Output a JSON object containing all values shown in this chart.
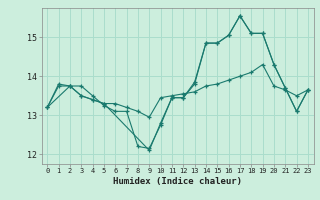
{
  "title": "",
  "xlabel": "Humidex (Indice chaleur)",
  "bg_color": "#cceedd",
  "grid_color": "#aaddcc",
  "line_color": "#1a7a6e",
  "xlim": [
    -0.5,
    23.5
  ],
  "ylim": [
    11.75,
    15.75
  ],
  "xticks": [
    0,
    1,
    2,
    3,
    4,
    5,
    6,
    7,
    8,
    9,
    10,
    11,
    12,
    13,
    14,
    15,
    16,
    17,
    18,
    19,
    20,
    21,
    22,
    23
  ],
  "yticks": [
    12,
    13,
    14,
    15
  ],
  "line1_x": [
    0,
    1,
    2,
    3,
    4,
    5,
    6,
    7,
    8,
    9,
    10,
    11,
    12,
    13,
    14,
    15,
    16,
    17,
    18,
    19,
    20,
    21,
    22,
    23
  ],
  "line1_y": [
    13.2,
    13.8,
    13.75,
    13.75,
    13.5,
    13.25,
    13.1,
    13.1,
    12.2,
    12.15,
    12.75,
    13.45,
    13.45,
    13.8,
    14.85,
    14.85,
    15.05,
    15.55,
    15.1,
    15.1,
    14.3,
    13.7,
    13.1,
    13.65
  ],
  "line2_x": [
    0,
    1,
    2,
    3,
    4,
    5,
    6,
    7,
    8,
    9,
    10,
    11,
    12,
    13,
    14,
    15,
    16,
    17,
    18,
    19,
    20,
    21,
    22,
    23
  ],
  "line2_y": [
    13.2,
    13.75,
    13.75,
    13.5,
    13.4,
    13.3,
    13.3,
    13.2,
    13.1,
    12.95,
    13.45,
    13.5,
    13.55,
    13.6,
    13.75,
    13.8,
    13.9,
    14.0,
    14.1,
    14.3,
    13.75,
    13.65,
    13.5,
    13.65
  ],
  "line3_x": [
    0,
    2,
    3,
    4,
    5,
    9,
    10,
    11,
    12,
    13,
    14,
    15,
    16,
    17,
    18,
    19,
    20,
    21,
    22,
    23
  ],
  "line3_y": [
    13.2,
    13.75,
    13.5,
    13.4,
    13.3,
    12.1,
    12.8,
    13.45,
    13.45,
    13.85,
    14.85,
    14.85,
    15.05,
    15.55,
    15.1,
    15.1,
    14.3,
    13.7,
    13.1,
    13.65
  ]
}
